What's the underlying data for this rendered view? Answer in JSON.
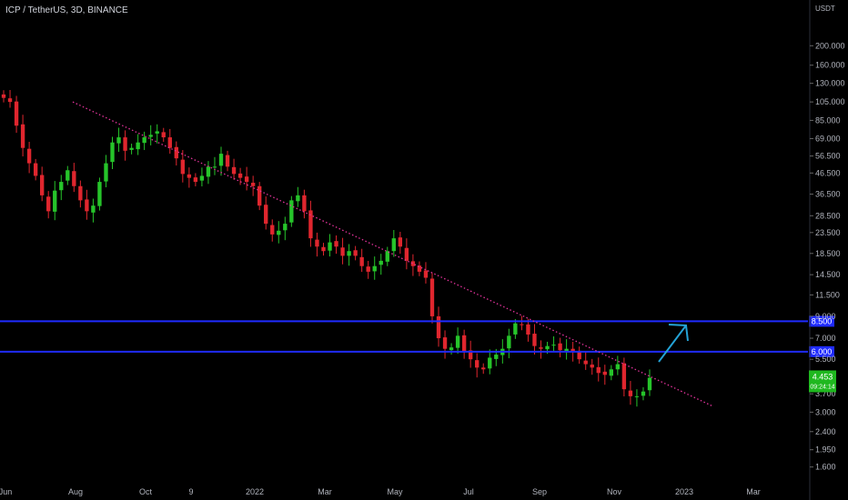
{
  "header": {
    "symbol_title": "ICP / TetherUS, 3D, BINANCE",
    "currency": "USDT"
  },
  "colors": {
    "background": "#000000",
    "up_candle": "#26c42a",
    "down_candle": "#e0262e",
    "support_line": "#1f2bff",
    "trend_line": "#e2339b",
    "arrow": "#24a3d6",
    "current_price_badge": "#1fb81f"
  },
  "chart_data": {
    "type": "candlestick",
    "y_scale": "log",
    "ylim": [
      1.35,
      280
    ],
    "price_axis_ticks": [
      200,
      160,
      130,
      105,
      85,
      69,
      56.5,
      46.5,
      36.5,
      28.5,
      23.5,
      18.5,
      14.5,
      11.5,
      9,
      7,
      5.5,
      3.7,
      3,
      2.4,
      1.95,
      1.6
    ],
    "price_axis_tick_labels": [
      "200.000",
      "160.000",
      "130.000",
      "105.000",
      "85.000",
      "69.000",
      "56.500",
      "46.500",
      "36.500",
      "28.500",
      "23.500",
      "18.500",
      "14.500",
      "11.500",
      "9.000",
      "7.000",
      "5.500",
      "3.700",
      "3.000",
      "2.400",
      "1.950",
      "1.600"
    ],
    "time_axis_labels": [
      "Jun",
      "Aug",
      "Oct",
      "9",
      "2022",
      "Mar",
      "May",
      "Jul",
      "Sep",
      "Nov",
      "2023",
      "Mar"
    ],
    "close_series": [
      110,
      105,
      80,
      62,
      52,
      45,
      36,
      30,
      38,
      42,
      48,
      40,
      34,
      30,
      32,
      42,
      52,
      66,
      70,
      60,
      62,
      66,
      70,
      72,
      75,
      70,
      62,
      55,
      46,
      44,
      42,
      45,
      50,
      50,
      58,
      50,
      46,
      44,
      42,
      40,
      32,
      26,
      23,
      24,
      26,
      34,
      36,
      30,
      22,
      20,
      19,
      21,
      20,
      18,
      19,
      18,
      16,
      15,
      16,
      17,
      19,
      22,
      20,
      17,
      16,
      15,
      14,
      9,
      7,
      6.2,
      6.3,
      7.2,
      6,
      5.5,
      5,
      4.9,
      5.6,
      5.8,
      6.2,
      7.2,
      8.3,
      8.2,
      7.3,
      6.4,
      6.2,
      6.4,
      6.5,
      6.1,
      6.2,
      6.0,
      5.5,
      5.2,
      5.0,
      4.7,
      4.6,
      4.9,
      5.2,
      3.9,
      3.6,
      3.6,
      3.8,
      4.45
    ],
    "support_levels": [
      {
        "value": 8.5,
        "label": "8.500"
      },
      {
        "value": 6.0,
        "label": "6.000"
      }
    ],
    "last_price": {
      "value": 4.453,
      "label": "4.453",
      "countdown": "09:24:14"
    },
    "trendline": {
      "from": {
        "time_label": "Aug",
        "price": 105
      },
      "to": {
        "time_label": "2023",
        "price": 3.2
      }
    }
  }
}
